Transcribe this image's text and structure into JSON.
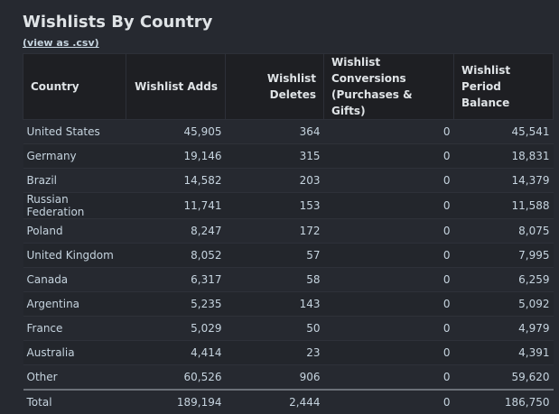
{
  "title": "Wishlists By Country",
  "csv_link": "(view as .csv)",
  "columns": [
    "Country",
    "Wishlist Adds",
    "Wishlist Deletes",
    "Wishlist Conversions (Purchases & Gifts)",
    "Wishlist Period Balance"
  ],
  "rows": [
    [
      "United States",
      "45,905",
      "364",
      "0",
      "45,541"
    ],
    [
      "Germany",
      "19,146",
      "315",
      "0",
      "18,831"
    ],
    [
      "Brazil",
      "14,582",
      "203",
      "0",
      "14,379"
    ],
    [
      "Russian Federation",
      "11,741",
      "153",
      "0",
      "11,588"
    ],
    [
      "Poland",
      "8,247",
      "172",
      "0",
      "8,075"
    ],
    [
      "United Kingdom",
      "8,052",
      "57",
      "0",
      "7,995"
    ],
    [
      "Canada",
      "6,317",
      "58",
      "0",
      "6,259"
    ],
    [
      "Argentina",
      "5,235",
      "143",
      "0",
      "5,092"
    ],
    [
      "France",
      "5,029",
      "50",
      "0",
      "4,979"
    ],
    [
      "Australia",
      "4,414",
      "23",
      "0",
      "4,391"
    ],
    [
      "Other",
      "60,526",
      "906",
      "0",
      "59,620"
    ]
  ],
  "total": [
    "Total",
    "189,194",
    "2,444",
    "0",
    "186,750"
  ]
}
